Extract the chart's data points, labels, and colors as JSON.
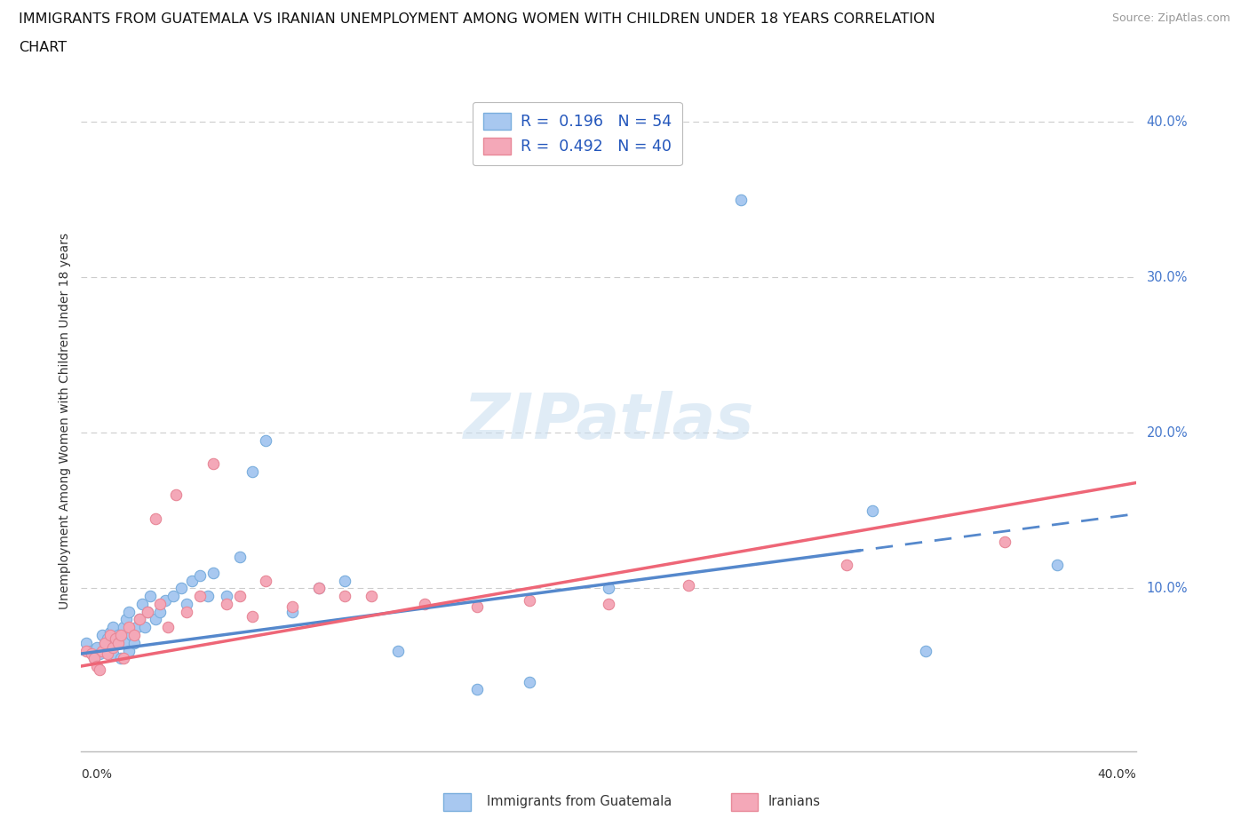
{
  "title_line1": "IMMIGRANTS FROM GUATEMALA VS IRANIAN UNEMPLOYMENT AMONG WOMEN WITH CHILDREN UNDER 18 YEARS CORRELATION",
  "title_line2": "CHART",
  "source": "Source: ZipAtlas.com",
  "ylabel": "Unemployment Among Women with Children Under 18 years",
  "xlim": [
    0,
    0.4
  ],
  "ylim": [
    -0.005,
    0.42
  ],
  "watermark": "ZIPatlas",
  "legend_title1": "R =  0.196   N = 54",
  "legend_title2": "R =  0.492   N = 40",
  "color_guatemala": "#a8c8f0",
  "color_iran": "#f4a8b8",
  "edge_color_guatemala": "#7aaedd",
  "edge_color_iran": "#e88898",
  "line_color_guatemala": "#5588cc",
  "line_color_iran": "#ee6677",
  "background_color": "#ffffff",
  "ytick_color": "#4477cc",
  "scatter_guatemala_x": [
    0.002,
    0.004,
    0.005,
    0.006,
    0.007,
    0.008,
    0.009,
    0.01,
    0.01,
    0.011,
    0.012,
    0.012,
    0.013,
    0.014,
    0.015,
    0.015,
    0.016,
    0.017,
    0.017,
    0.018,
    0.018,
    0.019,
    0.02,
    0.021,
    0.022,
    0.023,
    0.024,
    0.025,
    0.026,
    0.028,
    0.03,
    0.032,
    0.035,
    0.038,
    0.04,
    0.042,
    0.045,
    0.048,
    0.05,
    0.055,
    0.06,
    0.065,
    0.07,
    0.08,
    0.09,
    0.1,
    0.12,
    0.15,
    0.17,
    0.2,
    0.25,
    0.3,
    0.32,
    0.37
  ],
  "scatter_guatemala_y": [
    0.065,
    0.06,
    0.055,
    0.062,
    0.058,
    0.07,
    0.065,
    0.068,
    0.06,
    0.072,
    0.075,
    0.058,
    0.065,
    0.07,
    0.068,
    0.055,
    0.075,
    0.08,
    0.065,
    0.06,
    0.085,
    0.07,
    0.065,
    0.075,
    0.08,
    0.09,
    0.075,
    0.085,
    0.095,
    0.08,
    0.085,
    0.092,
    0.095,
    0.1,
    0.09,
    0.105,
    0.108,
    0.095,
    0.11,
    0.095,
    0.12,
    0.175,
    0.195,
    0.085,
    0.1,
    0.105,
    0.06,
    0.035,
    0.04,
    0.1,
    0.35,
    0.15,
    0.06,
    0.115
  ],
  "scatter_iran_x": [
    0.002,
    0.004,
    0.005,
    0.006,
    0.007,
    0.008,
    0.009,
    0.01,
    0.011,
    0.012,
    0.013,
    0.014,
    0.015,
    0.016,
    0.018,
    0.02,
    0.022,
    0.025,
    0.028,
    0.03,
    0.033,
    0.036,
    0.04,
    0.045,
    0.05,
    0.055,
    0.06,
    0.065,
    0.07,
    0.08,
    0.09,
    0.1,
    0.11,
    0.13,
    0.15,
    0.17,
    0.2,
    0.23,
    0.29,
    0.35
  ],
  "scatter_iran_y": [
    0.06,
    0.058,
    0.055,
    0.05,
    0.048,
    0.06,
    0.065,
    0.058,
    0.07,
    0.062,
    0.068,
    0.065,
    0.07,
    0.055,
    0.075,
    0.07,
    0.08,
    0.085,
    0.145,
    0.09,
    0.075,
    0.16,
    0.085,
    0.095,
    0.18,
    0.09,
    0.095,
    0.082,
    0.105,
    0.088,
    0.1,
    0.095,
    0.095,
    0.09,
    0.088,
    0.092,
    0.09,
    0.102,
    0.115,
    0.13
  ],
  "trend_blue_x1": 0.0,
  "trend_blue_y1": 0.058,
  "trend_blue_x2": 0.4,
  "trend_blue_y2": 0.148,
  "trend_pink_x1": 0.0,
  "trend_pink_y1": 0.05,
  "trend_pink_x2": 0.4,
  "trend_pink_y2": 0.168
}
